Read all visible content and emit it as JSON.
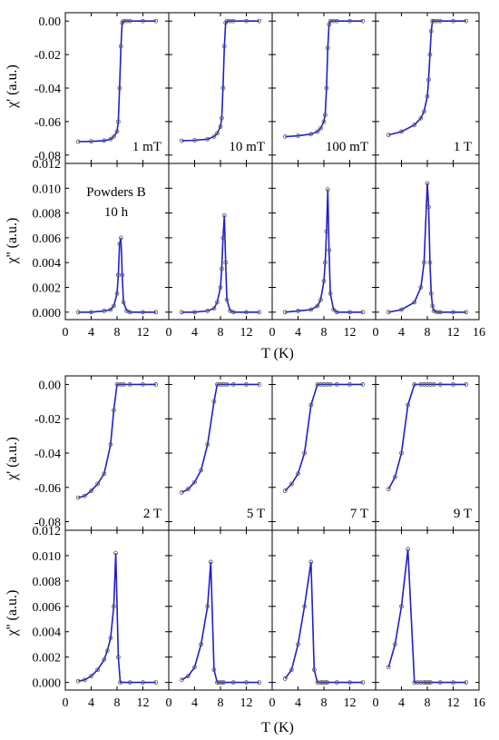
{
  "figure": {
    "blocks": [
      {
        "annotation": [
          "Powders B",
          "10 h"
        ],
        "fields": [
          "1 mT",
          "10 mT",
          "100 mT",
          "1 T"
        ]
      },
      {
        "annotation": [],
        "fields": [
          "2 T",
          "5 T",
          "7 T",
          "9 T"
        ]
      }
    ],
    "x_axis": {
      "label": "T (K)",
      "ticks": [
        "0",
        "4",
        "8",
        "12",
        "16"
      ],
      "range": [
        0,
        16
      ]
    },
    "chi_real_axis": {
      "label": "χ' (a.u.)",
      "ticks": [
        "0.00",
        "-0.02",
        "-0.04",
        "-0.06",
        "-0.08"
      ],
      "range": [
        -0.085,
        0.005
      ]
    },
    "chi_imag_axis": {
      "label": "χ'' (a.u.)",
      "ticks": [
        "0.000",
        "0.002",
        "0.004",
        "0.006",
        "0.008",
        "0.010",
        "0.012"
      ],
      "range": [
        -0.0006,
        0.012
      ]
    },
    "line_color": "#1f1fcc",
    "marker_color": "#555555"
  },
  "chart_data": [
    {
      "type": "line",
      "panel_group": "upper",
      "quantity": "χ'",
      "x": [
        2,
        4,
        6,
        7,
        7.5,
        8,
        8.2,
        8.4,
        8.6,
        8.8,
        9,
        9.5,
        10,
        12,
        14
      ],
      "series": [
        {
          "name": "1 mT",
          "values": [
            -0.072,
            -0.0718,
            -0.0714,
            -0.0705,
            -0.069,
            -0.066,
            -0.06,
            -0.04,
            -0.015,
            -0.001,
            0,
            0,
            0,
            0,
            0
          ]
        },
        {
          "name": "10 mT",
          "values": [
            -0.0715,
            -0.0712,
            -0.0705,
            -0.069,
            -0.067,
            -0.063,
            -0.058,
            -0.04,
            -0.015,
            -0.001,
            0,
            0,
            0,
            0,
            0
          ]
        },
        {
          "name": "100 mT",
          "values": [
            -0.069,
            -0.0685,
            -0.0675,
            -0.066,
            -0.064,
            -0.06,
            -0.056,
            -0.04,
            -0.016,
            -0.002,
            0,
            0,
            0,
            0,
            0
          ]
        },
        {
          "name": "1 T",
          "values": [
            -0.068,
            -0.066,
            -0.062,
            -0.058,
            -0.054,
            -0.045,
            -0.035,
            -0.02,
            -0.006,
            0,
            0,
            0,
            0,
            0,
            0
          ]
        }
      ]
    },
    {
      "type": "line",
      "panel_group": "upper",
      "quantity": "χ''",
      "x": [
        2,
        4,
        6,
        7,
        7.5,
        8,
        8.2,
        8.4,
        8.6,
        8.8,
        9,
        9.5,
        10,
        12,
        14
      ],
      "series": [
        {
          "name": "1 mT",
          "values": [
            0,
            0,
            0.0001,
            0.0002,
            0.0005,
            0.0015,
            0.003,
            0.0055,
            0.006,
            0.003,
            0.0008,
            0.0001,
            0,
            0,
            0
          ]
        },
        {
          "name": "10 mT",
          "values": [
            0,
            0,
            0.0001,
            0.0003,
            0.0008,
            0.002,
            0.0035,
            0.006,
            0.0078,
            0.004,
            0.001,
            0.0001,
            0,
            0,
            0
          ]
        },
        {
          "name": "100 mT",
          "values": [
            0,
            0.0001,
            0.0002,
            0.0005,
            0.001,
            0.0025,
            0.004,
            0.0065,
            0.0099,
            0.005,
            0.0015,
            0.0002,
            0,
            0,
            0
          ]
        },
        {
          "name": "1 T",
          "values": [
            0,
            0.0002,
            0.0008,
            0.002,
            0.004,
            0.0104,
            0.0085,
            0.004,
            0.0015,
            0.0005,
            0.0001,
            0,
            0,
            0,
            0
          ]
        }
      ]
    },
    {
      "type": "line",
      "panel_group": "lower",
      "quantity": "χ'",
      "x": [
        2,
        3,
        4,
        5,
        6,
        7,
        7.5,
        8,
        8.5,
        9,
        10,
        12,
        14
      ],
      "series": [
        {
          "name": "2 T",
          "values": [
            -0.066,
            -0.065,
            -0.062,
            -0.058,
            -0.052,
            -0.035,
            -0.015,
            0,
            0,
            0,
            0,
            0,
            0
          ]
        },
        {
          "name": "5 T",
          "values": [
            -0.063,
            -0.061,
            -0.057,
            -0.05,
            -0.035,
            -0.01,
            0,
            0,
            0,
            0,
            0,
            0,
            0
          ]
        },
        {
          "name": "7 T",
          "values": [
            -0.062,
            -0.058,
            -0.052,
            -0.04,
            -0.012,
            0,
            0,
            0,
            0,
            0,
            0,
            0,
            0
          ]
        },
        {
          "name": "9 T",
          "values": [
            -0.061,
            -0.054,
            -0.04,
            -0.012,
            0,
            0,
            0,
            0,
            0,
            0,
            0,
            0,
            0
          ]
        }
      ]
    },
    {
      "type": "line",
      "panel_group": "lower",
      "quantity": "χ''",
      "x": [
        2,
        3,
        4,
        5,
        6,
        6.5,
        7,
        7.5,
        7.8,
        8.2,
        8.5,
        10,
        12,
        14
      ],
      "series": [
        {
          "name": "2 T",
          "values": [
            0.0001,
            0.0002,
            0.0005,
            0.001,
            0.0018,
            0.0025,
            0.0035,
            0.006,
            0.0102,
            0.002,
            0,
            0,
            0,
            0
          ]
        },
        {
          "name": "5 T",
          "values": [
            0.0002,
            0.0005,
            0.0012,
            0.003,
            0.006,
            0.0095,
            0.001,
            0,
            0,
            0,
            0,
            0,
            0,
            0
          ]
        },
        {
          "name": "7 T",
          "values": [
            0.0003,
            0.001,
            0.003,
            0.006,
            0.0095,
            0.001,
            0,
            0,
            0,
            0,
            0,
            0,
            0,
            0
          ]
        },
        {
          "name": "9 T",
          "values": [
            0.0012,
            0.003,
            0.006,
            0.0105,
            0,
            0,
            0,
            0,
            0,
            0,
            0,
            0,
            0,
            0
          ]
        }
      ]
    }
  ]
}
